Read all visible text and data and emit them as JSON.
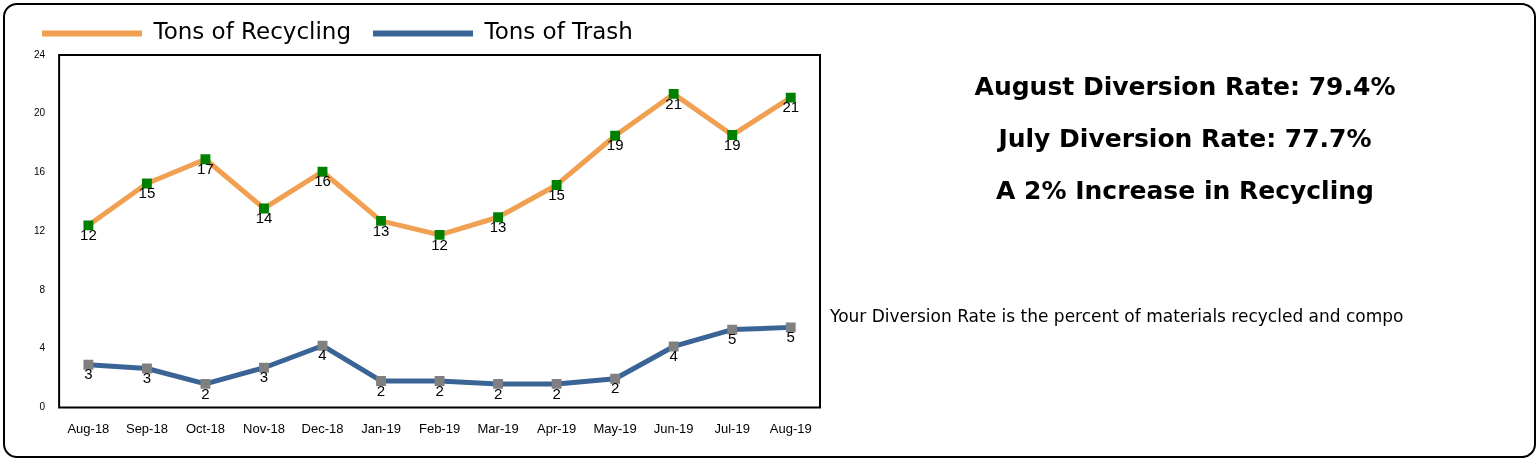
{
  "chart_data": [
    {
      "type": "line",
      "categories": [
        "Aug-18",
        "Sep-18",
        "Oct-18",
        "Nov-18",
        "Dec-18",
        "Jan-19",
        "Feb-19",
        "Mar-19",
        "Apr-19",
        "May-19",
        "Jun-19",
        "Jul-19",
        "Aug-19"
      ],
      "series": [
        {
          "name": "Tons of Recycling",
          "color": "#f0a050",
          "values": [
            12.4,
            15.25,
            16.9,
            13.55,
            16.05,
            12.7,
            11.75,
            12.95,
            15.15,
            18.5,
            21.35,
            18.55,
            21.1
          ],
          "value_labels": [
            "12",
            "15",
            "17",
            "14",
            "16",
            "13",
            "12",
            "13",
            "15",
            "19",
            "21",
            "19",
            "21"
          ]
        },
        {
          "name": "Tons of Trash",
          "color": "#3a6496",
          "values": [
            2.9,
            2.65,
            1.6,
            2.7,
            4.2,
            1.8,
            1.8,
            1.6,
            1.6,
            1.95,
            4.15,
            5.3,
            5.45
          ],
          "value_labels": [
            "3",
            "3",
            "2",
            "3",
            "4",
            "2",
            "2",
            "2",
            "2",
            "2",
            "4",
            "5",
            "5"
          ]
        }
      ],
      "ylim": [
        0,
        24
      ],
      "yticks": [
        0,
        4,
        8,
        12,
        16,
        20,
        24
      ],
      "grid": false,
      "legend": "top",
      "marker": "square",
      "line_style": "solid"
    },
    {
      "type": "other",
      "annotations": [
        "August Diversion Rate: 79.4%",
        "July Diversion Rate: 77.7%",
        "A 2% Increase in Recycling",
        "Your Diversion Rate is the percent of materials recycled and compo"
      ]
    }
  ]
}
